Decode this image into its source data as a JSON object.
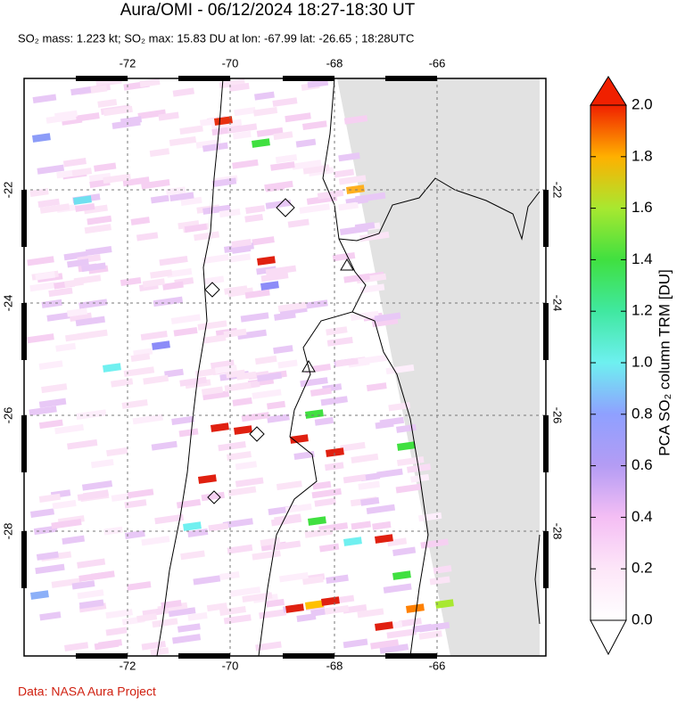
{
  "header": {
    "title": "Aura/OMI - 06/12/2024 18:27-18:30 UT",
    "subtitle": "SO₂ mass: 1.223 kt; SO₂ max: 15.83 DU at lon: -67.99 lat: -26.65 ; 18:28UTC"
  },
  "map": {
    "lon_ticks": [
      "-72",
      "-70",
      "-68",
      "-66"
    ],
    "lat_ticks": [
      "-22",
      "-24",
      "-26",
      "-28"
    ]
  },
  "colorbar": {
    "label": "PCA SO₂ column TRM [DU]",
    "ticks": [
      "0.0",
      "0.2",
      "0.4",
      "0.6",
      "0.8",
      "1.0",
      "1.2",
      "1.4",
      "1.6",
      "1.8",
      "2.0"
    ]
  },
  "footer": {
    "credit": "Data: NASA Aura Project"
  }
}
